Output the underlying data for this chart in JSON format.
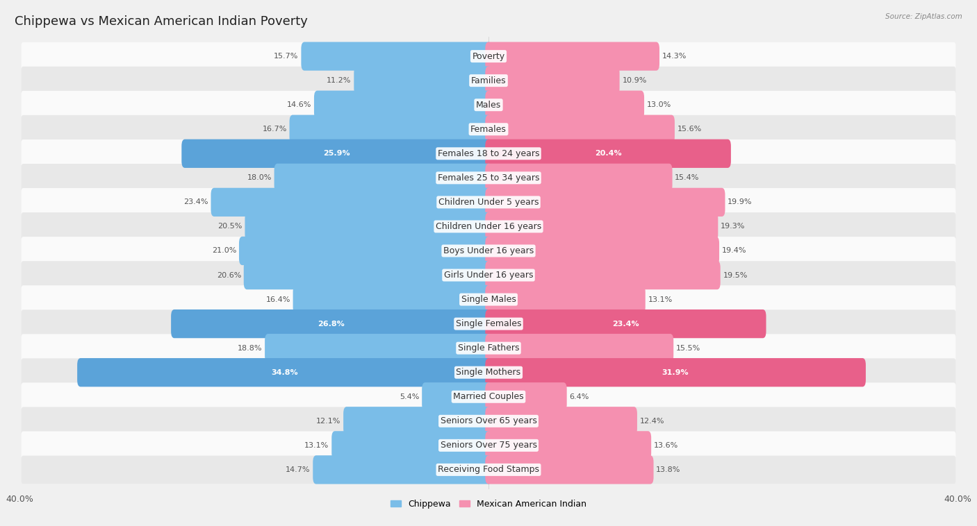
{
  "title": "Chippewa vs Mexican American Indian Poverty",
  "source": "Source: ZipAtlas.com",
  "categories": [
    "Poverty",
    "Families",
    "Males",
    "Females",
    "Females 18 to 24 years",
    "Females 25 to 34 years",
    "Children Under 5 years",
    "Children Under 16 years",
    "Boys Under 16 years",
    "Girls Under 16 years",
    "Single Males",
    "Single Females",
    "Single Fathers",
    "Single Mothers",
    "Married Couples",
    "Seniors Over 65 years",
    "Seniors Over 75 years",
    "Receiving Food Stamps"
  ],
  "chippewa": [
    15.7,
    11.2,
    14.6,
    16.7,
    25.9,
    18.0,
    23.4,
    20.5,
    21.0,
    20.6,
    16.4,
    26.8,
    18.8,
    34.8,
    5.4,
    12.1,
    13.1,
    14.7
  ],
  "mexican": [
    14.3,
    10.9,
    13.0,
    15.6,
    20.4,
    15.4,
    19.9,
    19.3,
    19.4,
    19.5,
    13.1,
    23.4,
    15.5,
    31.9,
    6.4,
    12.4,
    13.6,
    13.8
  ],
  "chippewa_color": "#7ABDE8",
  "mexican_color": "#F590B0",
  "chippewa_highlight_color": "#5BA3D9",
  "mexican_highlight_color": "#E8608A",
  "highlight_rows": [
    4,
    11,
    13
  ],
  "xlim": 40.0,
  "bg_color": "#f0f0f0",
  "row_light": "#fafafa",
  "row_dark": "#e8e8e8",
  "title_fontsize": 13,
  "label_fontsize": 9,
  "value_fontsize": 8,
  "legend_labels": [
    "Chippewa",
    "Mexican American Indian"
  ]
}
